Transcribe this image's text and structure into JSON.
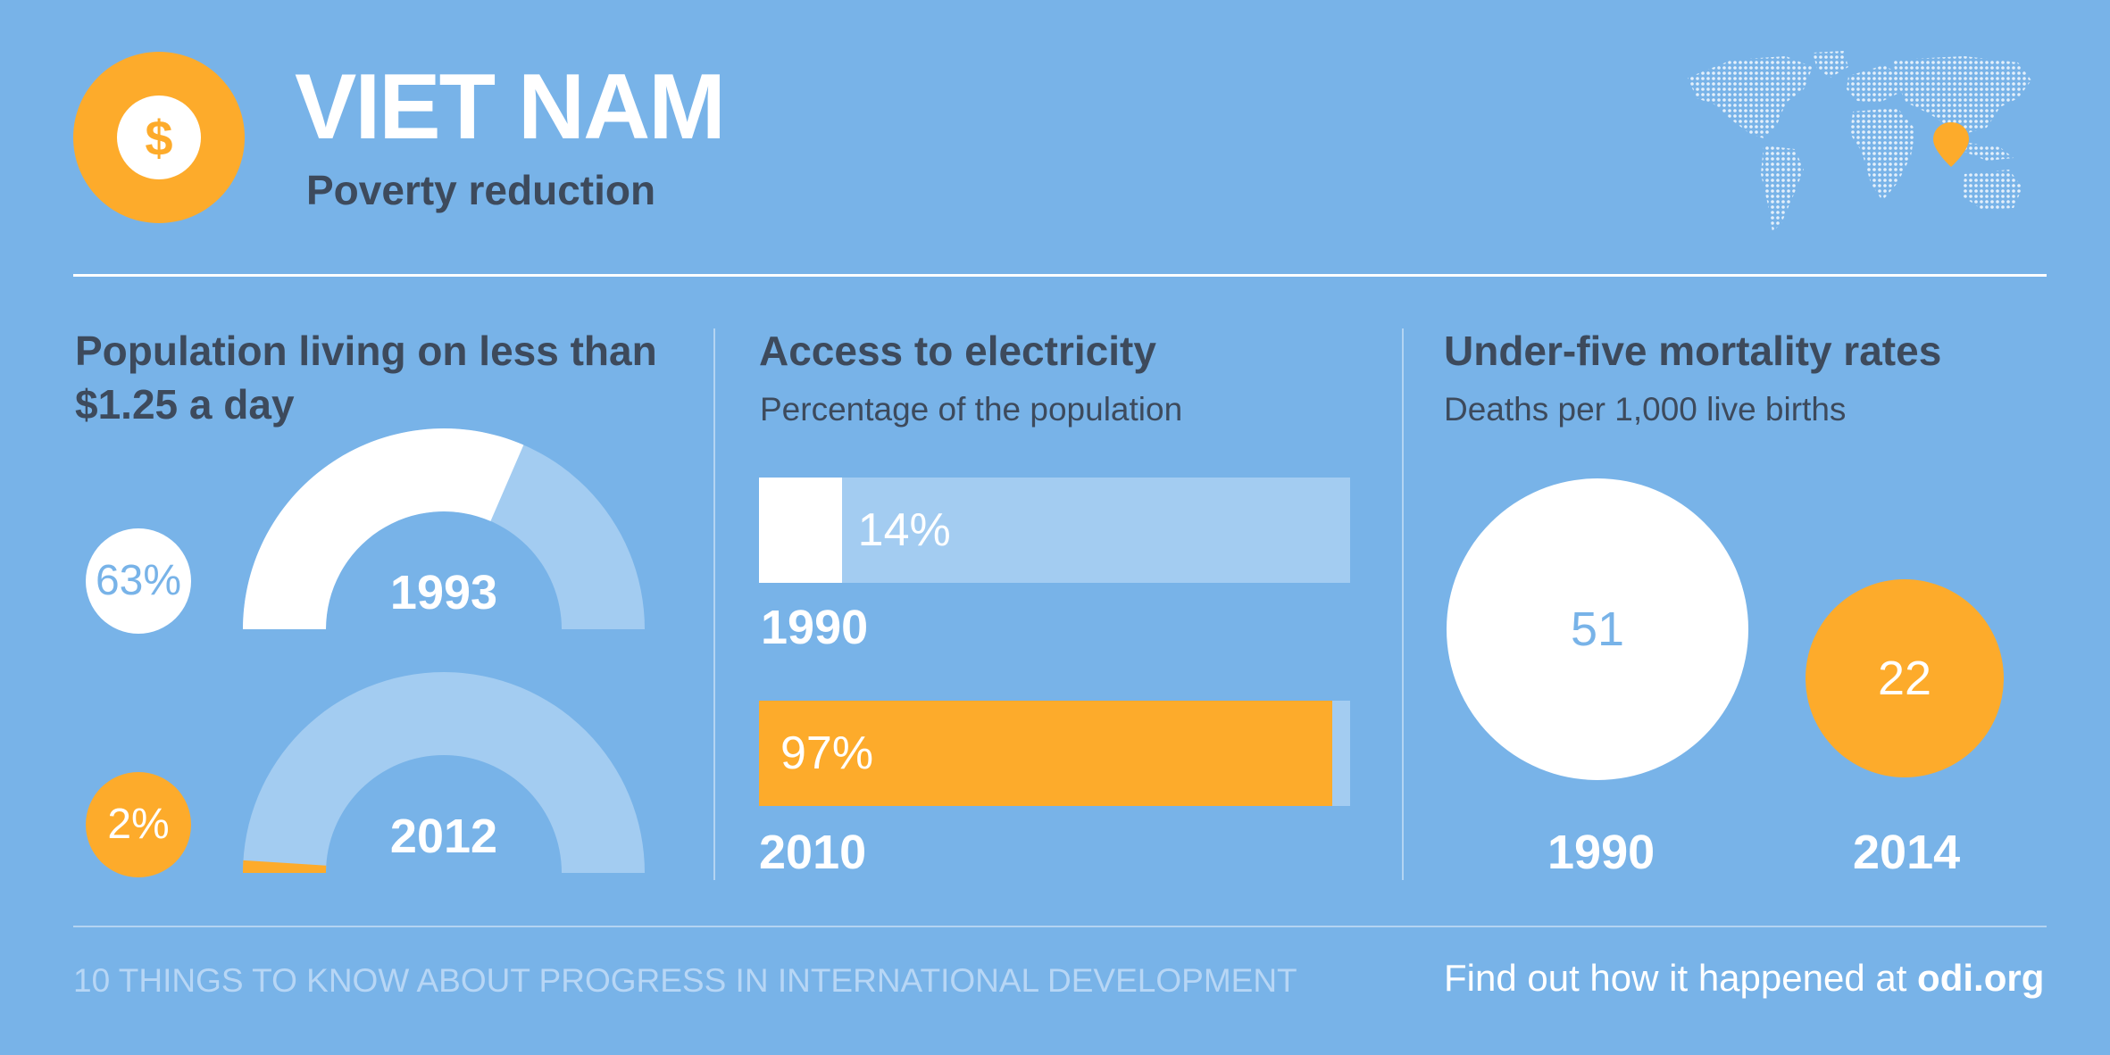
{
  "header": {
    "logo_symbol": "$",
    "title": "VIET NAM",
    "subtitle": "Poverty reduction",
    "map_icon": "world-map-icon",
    "pin_icon": "location-pin-icon"
  },
  "colors": {
    "background": "#78b3e8",
    "accent": "#fdab2b",
    "light_track": "#a3ccf1",
    "white": "#ffffff",
    "dark_text": "#3d4a5c"
  },
  "sections": {
    "poverty": {
      "title_line1": "Population living on less than",
      "title_line2": "$1.25 a day"
    },
    "electricity": {
      "title": "Access to electricity",
      "subtitle": "Percentage of the population"
    },
    "mortality": {
      "title": "Under-five mortality rates",
      "subtitle": "Deaths per 1,000 live births"
    }
  },
  "chart_data": [
    {
      "type": "donut-gauge",
      "title": "Population living on less than $1.25 a day",
      "unit": "%",
      "items": [
        {
          "year": "1993",
          "value": 63,
          "label": "63%",
          "color": "#ffffff"
        },
        {
          "year": "2012",
          "value": 2,
          "label": "2%",
          "color": "#fdab2b"
        }
      ]
    },
    {
      "type": "bar",
      "title": "Access to electricity",
      "subtitle": "Percentage of the population",
      "max": 100,
      "items": [
        {
          "year": "1990",
          "value": 14,
          "label": "14%",
          "color": "#ffffff"
        },
        {
          "year": "2010",
          "value": 97,
          "label": "97%",
          "color": "#fdab2b"
        }
      ]
    },
    {
      "type": "bubble",
      "title": "Under-five mortality rates",
      "subtitle": "Deaths per 1,000 live births",
      "items": [
        {
          "year": "1990",
          "value": 51,
          "label": "51",
          "color": "#ffffff"
        },
        {
          "year": "2014",
          "value": 22,
          "label": "22",
          "color": "#fdab2b"
        }
      ]
    }
  ],
  "footer": {
    "left": "10 THINGS TO KNOW ABOUT PROGRESS IN INTERNATIONAL DEVELOPMENT",
    "right_prefix": "Find out how it happened at ",
    "right_link": "odi.org"
  }
}
